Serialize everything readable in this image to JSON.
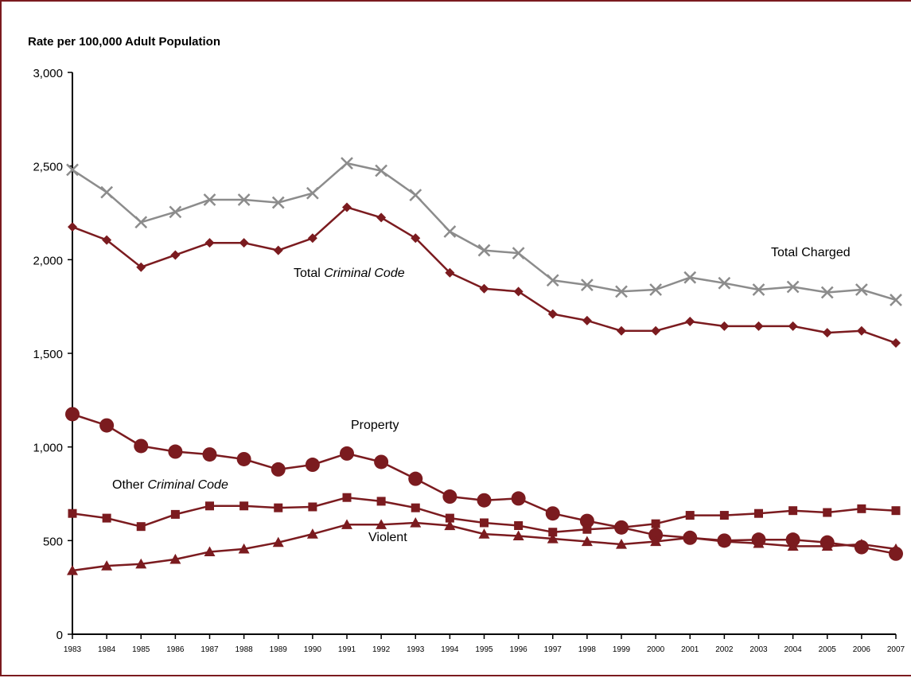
{
  "chart_data": {
    "type": "line",
    "title": "",
    "ylabel": "Rate per 100,000 Adult Population",
    "xlabel": "",
    "ylim": [
      0,
      3000
    ],
    "yticks": [
      0,
      500,
      1000,
      1500,
      2000,
      2500,
      3000
    ],
    "ytick_labels": [
      "0",
      "500",
      "1,000",
      "1,500",
      "2,000",
      "2,500",
      "3,000"
    ],
    "categories": [
      "1983",
      "1984",
      "1985",
      "1986",
      "1987",
      "1988",
      "1989",
      "1990",
      "1991",
      "1992",
      "1993",
      "1994",
      "1995",
      "1996",
      "1997",
      "1998",
      "1999",
      "2000",
      "2001",
      "2002",
      "2003",
      "2004",
      "2005",
      "2006",
      "2007"
    ],
    "xtick_labels": [
      "1983",
      "1984",
      "1985",
      "1986",
      "1987",
      "1988",
      "1989",
      "1990",
      "1991",
      "1992",
      "1993",
      "1994",
      "1995",
      "1996",
      "1997",
      "1998",
      "1999",
      "2000",
      "2001",
      "2002",
      "2003",
      "2004",
      "2005",
      "2006",
      "2007"
    ],
    "series": [
      {
        "key": "total_charged",
        "color": "#8c8c8c",
        "marker": "x",
        "values": [
          2480,
          2360,
          2200,
          2255,
          2320,
          2320,
          2305,
          2355,
          2515,
          2475,
          2345,
          2150,
          2050,
          2035,
          1890,
          1865,
          1830,
          1840,
          1905,
          1875,
          1840,
          1855,
          1825,
          1840,
          1785
        ]
      },
      {
        "key": "total_criminal_code",
        "color": "#7b1b1f",
        "marker": "diamond",
        "values": [
          2175,
          2105,
          1960,
          2025,
          2090,
          2090,
          2050,
          2115,
          2280,
          2225,
          2115,
          1930,
          1845,
          1830,
          1710,
          1675,
          1620,
          1620,
          1670,
          1645,
          1645,
          1645,
          1610,
          1620,
          1555
        ]
      },
      {
        "key": "property",
        "color": "#7b1b1f",
        "marker": "circle",
        "values": [
          1175,
          1115,
          1005,
          975,
          960,
          935,
          880,
          905,
          965,
          920,
          830,
          735,
          715,
          725,
          645,
          605,
          570,
          530,
          515,
          500,
          505,
          505,
          490,
          465,
          430
        ]
      },
      {
        "key": "other_criminal_code",
        "color": "#7b1b1f",
        "marker": "square",
        "values": [
          645,
          620,
          575,
          640,
          685,
          685,
          675,
          680,
          730,
          710,
          675,
          620,
          595,
          580,
          545,
          560,
          570,
          590,
          635,
          635,
          645,
          660,
          650,
          670,
          660
        ]
      },
      {
        "key": "violent",
        "color": "#7b1b1f",
        "marker": "triangle",
        "values": [
          340,
          365,
          375,
          400,
          440,
          455,
          490,
          535,
          585,
          585,
          595,
          580,
          535,
          525,
          510,
          495,
          480,
          495,
          515,
          495,
          485,
          470,
          470,
          480,
          455
        ]
      }
    ],
    "annotations": {
      "total_charged": "Total Charged",
      "total_criminal_code_prefix": "Total ",
      "total_criminal_code_italic": "Criminal Code",
      "property": "Property",
      "other_criminal_code_prefix": "Other ",
      "other_criminal_code_italic": "Criminal Code",
      "violent": "Violent"
    },
    "grid": false,
    "legend": "none"
  }
}
